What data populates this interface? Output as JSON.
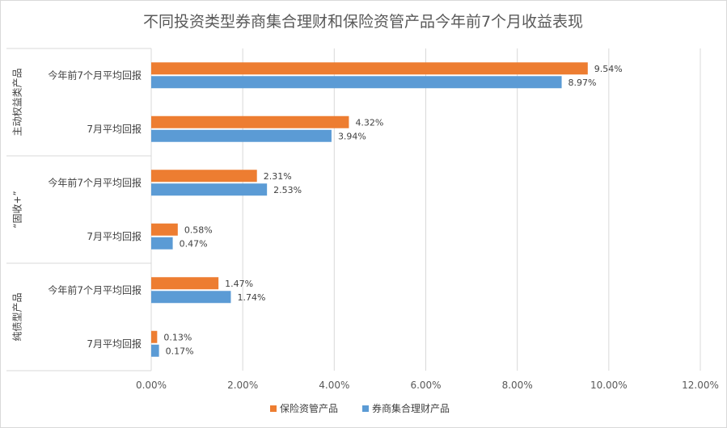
{
  "chart_data": {
    "type": "bar",
    "orientation": "horizontal",
    "title": "不同投资类型券商集合理财和保险资管产品今年前7个月收益表现",
    "groups": [
      {
        "label": "主动权益类产品",
        "categories": [
          "今年前7个月平均回报",
          "7月平均回报"
        ]
      },
      {
        "label": "“固收+”",
        "categories": [
          "今年前7个月平均回报",
          "7月平均回报"
        ]
      },
      {
        "label": "纯债型产品",
        "categories": [
          "今年前7个月平均回报",
          "7月平均回报"
        ]
      }
    ],
    "series": [
      {
        "name": "保险资管产品",
        "color": "#ed7d31",
        "values": [
          9.54,
          4.32,
          2.31,
          0.58,
          1.47,
          0.13
        ],
        "labels": [
          "9.54%",
          "4.32%",
          "2.31%",
          "0.58%",
          "1.47%",
          "0.13%"
        ]
      },
      {
        "name": "券商集合理财产品",
        "color": "#5b9bd5",
        "values": [
          8.97,
          3.94,
          2.53,
          0.47,
          1.74,
          0.17
        ],
        "labels": [
          "8.97%",
          "3.94%",
          "2.53%",
          "0.47%",
          "1.74%",
          "0.17%"
        ]
      }
    ],
    "xlim": [
      0,
      12
    ],
    "xticks": [
      "0.00%",
      "2.00%",
      "4.00%",
      "6.00%",
      "8.00%",
      "10.00%",
      "12.00%"
    ],
    "grid": true,
    "legend_position": "bottom"
  }
}
